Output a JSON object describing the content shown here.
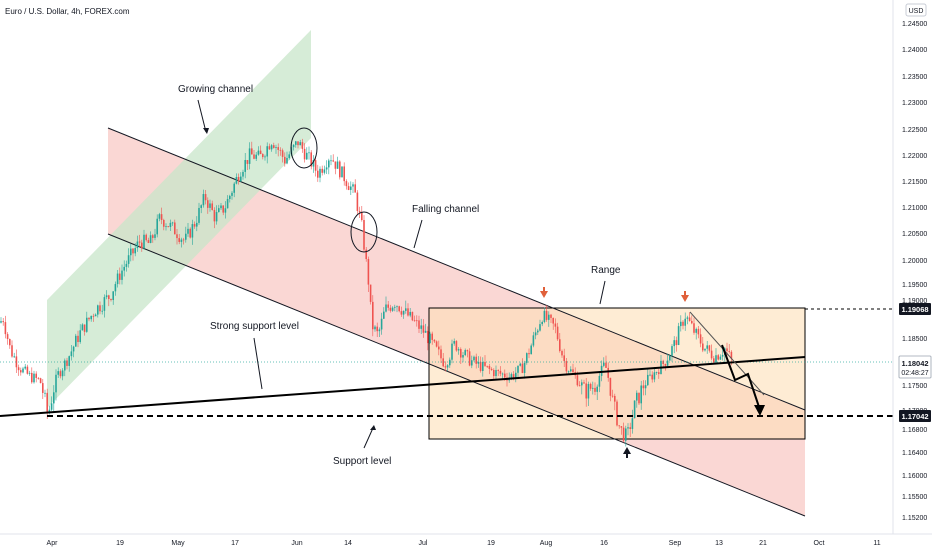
{
  "header": {
    "symbol_title": "Euro / U.S. Dollar, 4h, FOREX.com"
  },
  "price_axis": {
    "currency": "USD",
    "ticks": [
      "1.24500",
      "1.24000",
      "1.23500",
      "1.23000",
      "1.22500",
      "1.22000",
      "1.21500",
      "1.21000",
      "1.20500",
      "1.20000",
      "1.19500",
      "1.19000",
      "1.18500",
      "1.18000",
      "1.17500",
      "1.17000",
      "1.16800",
      "1.16400",
      "1.16000",
      "1.15500",
      "1.15200"
    ]
  },
  "time_axis": {
    "ticks": [
      "Apr",
      "19",
      "May",
      "17",
      "Jun",
      "14",
      "Jul",
      "19",
      "Aug",
      "16",
      "Sep",
      "13",
      "21",
      "Oct",
      "11"
    ]
  },
  "badges": {
    "range_top": "1.19068",
    "current_price": "1.18042",
    "countdown": "02:48:27",
    "support": "1.17042"
  },
  "annotations": {
    "growing_channel": "Growing channel",
    "falling_channel": "Falling channel",
    "range": "Range",
    "strong_support": "Strong support level",
    "support_level": "Support level"
  },
  "colors": {
    "up_candle": "#26a69a",
    "down_candle": "#ef5350",
    "growing_channel_fill": "#c8e6c9",
    "falling_channel_fill": "#f8c9c5",
    "range_fill": "#fde0b8",
    "badge_dark": "#131722",
    "annotation_red_arrow": "#e0603a"
  },
  "chart_data": {
    "type": "candlestick",
    "title": "Euro / U.S. Dollar, 4h, FOREX.com",
    "x_axis": [
      "Apr",
      "19",
      "May",
      "17",
      "Jun",
      "14",
      "Jul",
      "19",
      "Aug",
      "16",
      "Sep",
      "13",
      "21",
      "Oct",
      "11"
    ],
    "y_axis_unit": "USD",
    "price_path": [
      {
        "x": 0,
        "close": 1.188
      },
      {
        "x": 3,
        "close": 1.189
      },
      {
        "x": 10,
        "close": 1.183
      },
      {
        "x": 20,
        "close": 1.179
      },
      {
        "x": 30,
        "close": 1.177
      },
      {
        "x": 40,
        "close": 1.176
      },
      {
        "x": 48,
        "close": 1.1705
      },
      {
        "x": 58,
        "close": 1.1775
      },
      {
        "x": 70,
        "close": 1.182
      },
      {
        "x": 80,
        "close": 1.186
      },
      {
        "x": 95,
        "close": 1.1905
      },
      {
        "x": 110,
        "close": 1.193
      },
      {
        "x": 125,
        "close": 1.199
      },
      {
        "x": 140,
        "close": 1.2035
      },
      {
        "x": 150,
        "close": 1.203
      },
      {
        "x": 160,
        "close": 1.208
      },
      {
        "x": 175,
        "close": 1.2055
      },
      {
        "x": 185,
        "close": 1.2035
      },
      {
        "x": 195,
        "close": 1.207
      },
      {
        "x": 205,
        "close": 1.212
      },
      {
        "x": 215,
        "close": 1.208
      },
      {
        "x": 225,
        "close": 1.21
      },
      {
        "x": 240,
        "close": 1.217
      },
      {
        "x": 250,
        "close": 1.22
      },
      {
        "x": 260,
        "close": 1.2195
      },
      {
        "x": 272,
        "close": 1.223
      },
      {
        "x": 285,
        "close": 1.219
      },
      {
        "x": 298,
        "close": 1.2225
      },
      {
        "x": 308,
        "close": 1.2195
      },
      {
        "x": 318,
        "close": 1.2165
      },
      {
        "x": 330,
        "close": 1.22
      },
      {
        "x": 345,
        "close": 1.2155
      },
      {
        "x": 355,
        "close": 1.2125
      },
      {
        "x": 362,
        "close": 1.206
      },
      {
        "x": 368,
        "close": 1.1965
      },
      {
        "x": 372,
        "close": 1.1875
      },
      {
        "x": 378,
        "close": 1.1855
      },
      {
        "x": 385,
        "close": 1.1905
      },
      {
        "x": 395,
        "close": 1.192
      },
      {
        "x": 405,
        "close": 1.19
      },
      {
        "x": 415,
        "close": 1.188
      },
      {
        "x": 425,
        "close": 1.186
      },
      {
        "x": 435,
        "close": 1.183
      },
      {
        "x": 445,
        "close": 1.18
      },
      {
        "x": 455,
        "close": 1.184
      },
      {
        "x": 468,
        "close": 1.181
      },
      {
        "x": 480,
        "close": 1.1795
      },
      {
        "x": 495,
        "close": 1.178
      },
      {
        "x": 510,
        "close": 1.177
      },
      {
        "x": 522,
        "close": 1.179
      },
      {
        "x": 532,
        "close": 1.184
      },
      {
        "x": 542,
        "close": 1.1895
      },
      {
        "x": 555,
        "close": 1.187
      },
      {
        "x": 565,
        "close": 1.18
      },
      {
        "x": 575,
        "close": 1.177
      },
      {
        "x": 585,
        "close": 1.174
      },
      {
        "x": 595,
        "close": 1.175
      },
      {
        "x": 605,
        "close": 1.18
      },
      {
        "x": 612,
        "close": 1.173
      },
      {
        "x": 620,
        "close": 1.168
      },
      {
        "x": 627,
        "close": 1.1665
      },
      {
        "x": 635,
        "close": 1.172
      },
      {
        "x": 645,
        "close": 1.1755
      },
      {
        "x": 655,
        "close": 1.178
      },
      {
        "x": 665,
        "close": 1.1805
      },
      {
        "x": 675,
        "close": 1.184
      },
      {
        "x": 685,
        "close": 1.1895
      },
      {
        "x": 695,
        "close": 1.186
      },
      {
        "x": 705,
        "close": 1.183
      },
      {
        "x": 715,
        "close": 1.1815
      },
      {
        "x": 725,
        "close": 1.183
      },
      {
        "x": 732,
        "close": 1.1804
      }
    ]
  }
}
